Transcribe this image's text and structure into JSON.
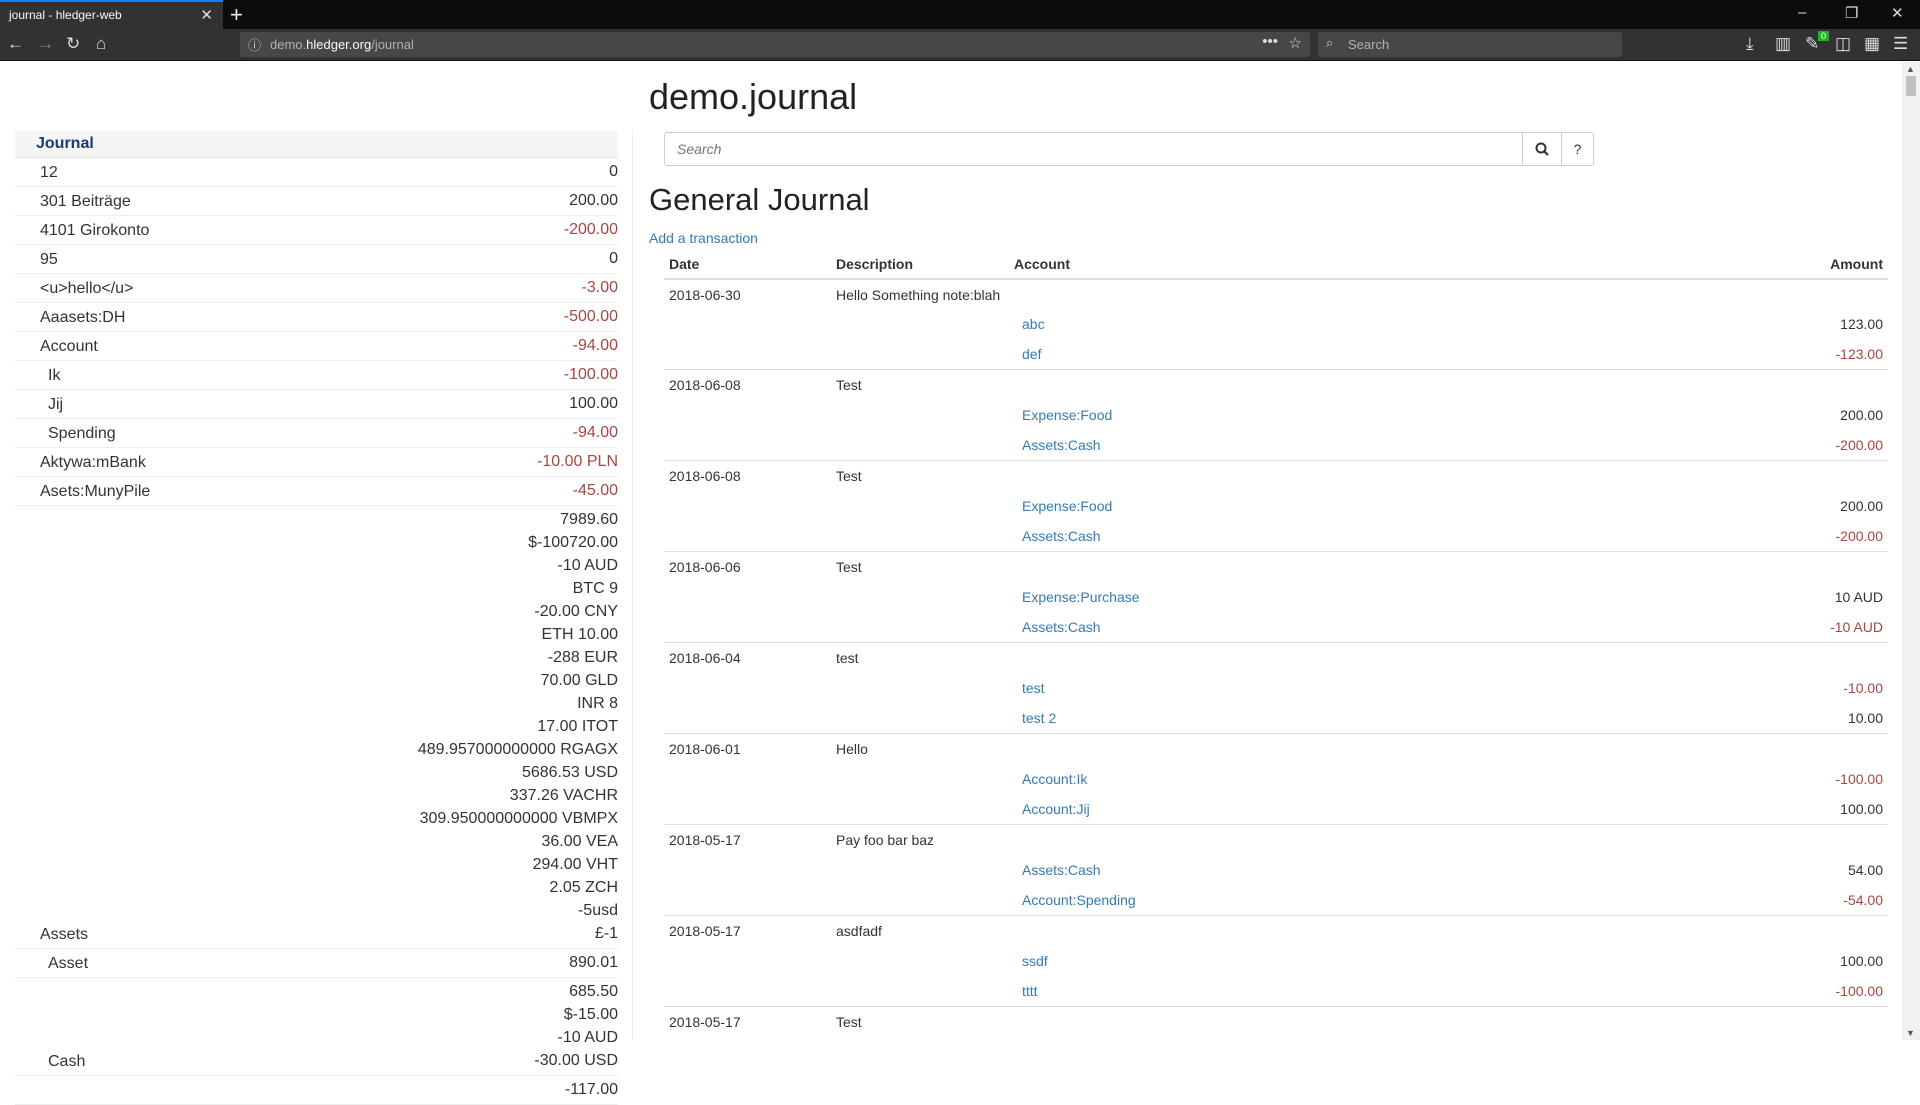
{
  "browser": {
    "tab_title": "journal - hledger-web",
    "url_host_prefix": "demo.",
    "url_host": "hledger.org",
    "url_path": "/journal",
    "search_placeholder": "Search",
    "badge": "0"
  },
  "page": {
    "title": "demo.journal",
    "search_placeholder": "Search",
    "help_label": "?",
    "heading": "General Journal",
    "add_link": "Add a transaction"
  },
  "sidebar": {
    "header": "Journal",
    "items": [
      {
        "name": "12",
        "indent": 1,
        "amounts": [
          {
            "t": "0",
            "neg": false
          }
        ]
      },
      {
        "name": "301 Beiträge",
        "indent": 1,
        "amounts": [
          {
            "t": "200.00",
            "neg": false
          }
        ]
      },
      {
        "name": "4101 Girokonto",
        "indent": 1,
        "amounts": [
          {
            "t": "-200.00",
            "neg": true
          }
        ]
      },
      {
        "name": "95",
        "indent": 1,
        "amounts": [
          {
            "t": "0",
            "neg": false
          }
        ]
      },
      {
        "name": "<u>hello</u>",
        "indent": 1,
        "amounts": [
          {
            "t": "-3.00",
            "neg": true
          }
        ]
      },
      {
        "name": "Aaasets:DH",
        "indent": 1,
        "amounts": [
          {
            "t": "-500.00",
            "neg": true
          }
        ]
      },
      {
        "name": "Account",
        "indent": 1,
        "amounts": [
          {
            "t": "-94.00",
            "neg": true
          }
        ]
      },
      {
        "name": "Ik",
        "indent": 2,
        "amounts": [
          {
            "t": "-100.00",
            "neg": true
          }
        ]
      },
      {
        "name": "Jij",
        "indent": 2,
        "amounts": [
          {
            "t": "100.00",
            "neg": false
          }
        ]
      },
      {
        "name": "Spending",
        "indent": 2,
        "amounts": [
          {
            "t": "-94.00",
            "neg": true
          }
        ]
      },
      {
        "name": "Aktywa:mBank",
        "indent": 1,
        "amounts": [
          {
            "t": "-10.00 PLN",
            "neg": true
          }
        ]
      },
      {
        "name": "Asets:MunyPile",
        "indent": 1,
        "amounts": [
          {
            "t": "-45.00",
            "neg": true
          }
        ]
      },
      {
        "name": "Assets",
        "indent": 1,
        "amounts": [
          {
            "t": "7989.60",
            "neg": false
          },
          {
            "t": "$-100720.00",
            "neg": false
          },
          {
            "t": "-10 AUD",
            "neg": false
          },
          {
            "t": "BTC 9",
            "neg": false
          },
          {
            "t": "-20.00 CNY",
            "neg": false
          },
          {
            "t": "ETH 10.00",
            "neg": false
          },
          {
            "t": "-288 EUR",
            "neg": false
          },
          {
            "t": "70.00 GLD",
            "neg": false
          },
          {
            "t": "INR 8",
            "neg": false
          },
          {
            "t": "17.00 ITOT",
            "neg": false
          },
          {
            "t": "489.957000000000 RGAGX",
            "neg": false
          },
          {
            "t": "5686.53 USD",
            "neg": false
          },
          {
            "t": "337.26 VACHR",
            "neg": false
          },
          {
            "t": "309.950000000000 VBMPX",
            "neg": false
          },
          {
            "t": "36.00 VEA",
            "neg": false
          },
          {
            "t": "294.00 VHT",
            "neg": false
          },
          {
            "t": "2.05 ZCH",
            "neg": false
          },
          {
            "t": "-5usd",
            "neg": false
          },
          {
            "t": "£-1",
            "neg": false
          }
        ]
      },
      {
        "name": "Asset",
        "indent": 2,
        "amounts": [
          {
            "t": "890.01",
            "neg": false
          }
        ]
      },
      {
        "name": "Cash",
        "indent": 2,
        "amounts": [
          {
            "t": "685.50",
            "neg": false
          },
          {
            "t": "$-15.00",
            "neg": false
          },
          {
            "t": "-10 AUD",
            "neg": false
          },
          {
            "t": "-30.00 USD",
            "neg": false
          }
        ]
      },
      {
        "name": "",
        "indent": 2,
        "amounts": [
          {
            "t": "-117.00",
            "neg": false
          }
        ]
      }
    ]
  },
  "journal": {
    "columns": {
      "date": "Date",
      "description": "Description",
      "account": "Account",
      "amount": "Amount"
    },
    "transactions": [
      {
        "date": "2018-06-30",
        "desc": "Hello Something note:blah",
        "postings": [
          {
            "account": "abc",
            "amount": "123.00",
            "neg": false
          },
          {
            "account": "def",
            "amount": "-123.00",
            "neg": true
          }
        ]
      },
      {
        "date": "2018-06-08",
        "desc": "Test",
        "postings": [
          {
            "account": "Expense:Food",
            "amount": "200.00",
            "neg": false
          },
          {
            "account": "Assets:Cash",
            "amount": "-200.00",
            "neg": true
          }
        ]
      },
      {
        "date": "2018-06-08",
        "desc": "Test",
        "postings": [
          {
            "account": "Expense:Food",
            "amount": "200.00",
            "neg": false
          },
          {
            "account": "Assets:Cash",
            "amount": "-200.00",
            "neg": true
          }
        ]
      },
      {
        "date": "2018-06-06",
        "desc": "Test",
        "postings": [
          {
            "account": "Expense:Purchase",
            "amount": "10 AUD",
            "neg": false
          },
          {
            "account": "Assets:Cash",
            "amount": "-10 AUD",
            "neg": true
          }
        ]
      },
      {
        "date": "2018-06-04",
        "desc": "test",
        "postings": [
          {
            "account": "test",
            "amount": "-10.00",
            "neg": true
          },
          {
            "account": "test 2",
            "amount": "10.00",
            "neg": false
          }
        ]
      },
      {
        "date": "2018-06-01",
        "desc": "Hello",
        "postings": [
          {
            "account": "Account:Ik",
            "amount": "-100.00",
            "neg": true
          },
          {
            "account": "Account:Jij",
            "amount": "100.00",
            "neg": false
          }
        ]
      },
      {
        "date": "2018-05-17",
        "desc": "Pay foo bar baz",
        "postings": [
          {
            "account": "Assets:Cash",
            "amount": "54.00",
            "neg": false
          },
          {
            "account": "Account:Spending",
            "amount": "-54.00",
            "neg": true
          }
        ]
      },
      {
        "date": "2018-05-17",
        "desc": "asdfadf",
        "postings": [
          {
            "account": "ssdf",
            "amount": "100.00",
            "neg": false
          },
          {
            "account": "tttt",
            "amount": "-100.00",
            "neg": true
          }
        ]
      },
      {
        "date": "2018-05-17",
        "desc": "Test",
        "postings": []
      }
    ]
  },
  "colors": {
    "negative": "#a94442",
    "link": "#337ab7",
    "tab_accent": "#0a84ff"
  }
}
